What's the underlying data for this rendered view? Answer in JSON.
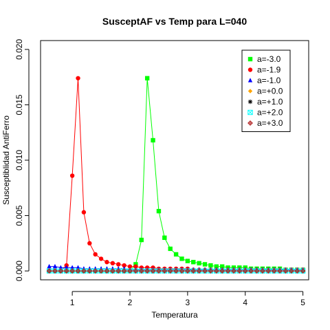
{
  "chart_data": {
    "type": "line",
    "title": "SusceptAF vs Temp para L=040",
    "xlabel": "Temperatura",
    "ylabel": "Susceptiblidad AntiFerro",
    "xlim": [
      0.45,
      5.1
    ],
    "ylim": [
      -0.0008,
      0.0208
    ],
    "x_ticks": [
      1,
      2,
      3,
      4,
      5
    ],
    "x_tick_labels": [
      "1",
      "2",
      "3",
      "4",
      "5"
    ],
    "y_ticks": [
      0.0,
      0.005,
      0.01,
      0.015,
      0.02
    ],
    "y_tick_labels": [
      "0.000",
      "0.005",
      "0.010",
      "0.015",
      "0.020"
    ],
    "grid": false,
    "legend_position": "top-right",
    "x": [
      0.6,
      0.7,
      0.8,
      0.9,
      1.0,
      1.1,
      1.2,
      1.3,
      1.4,
      1.5,
      1.6,
      1.7,
      1.8,
      1.9,
      2.0,
      2.1,
      2.2,
      2.3,
      2.4,
      2.5,
      2.6,
      2.7,
      2.8,
      2.9,
      3.0,
      3.1,
      3.2,
      3.3,
      3.4,
      3.5,
      3.6,
      3.7,
      3.8,
      3.9,
      4.0,
      4.1,
      4.2,
      4.3,
      4.4,
      4.5,
      4.6,
      4.7,
      4.8,
      4.9,
      5.0
    ],
    "series": [
      {
        "name": "a=-3.0",
        "color": "#00ff00",
        "marker": "square",
        "values": [
          0,
          0,
          0,
          0,
          0,
          0,
          0,
          0,
          0,
          0,
          0,
          0,
          0,
          0,
          0,
          0.0006,
          0.0028,
          0.0174,
          0.0118,
          0.0054,
          0.003,
          0.002,
          0.0015,
          0.0011,
          0.0009,
          0.0008,
          0.0007,
          0.0006,
          0.0005,
          0.0004,
          0.0004,
          0.0003,
          0.0003,
          0.0003,
          0.0003,
          0.0002,
          0.0002,
          0.0002,
          0.0002,
          0.0002,
          0.0002,
          0.0001,
          0.0001,
          0.0001,
          0.0001
        ]
      },
      {
        "name": "a=-1.9",
        "color": "#ff0000",
        "marker": "circle",
        "values": [
          0,
          0,
          0,
          0.0005,
          0.0086,
          0.0174,
          0.0053,
          0.0025,
          0.0015,
          0.0011,
          0.0008,
          0.0007,
          0.0006,
          0.0005,
          0.0004,
          0.0004,
          0.0003,
          0.0003,
          0.0003,
          0.0002,
          0.0002,
          0.0002,
          0.0002,
          0.0002,
          0.0002,
          0.0001,
          0.0001,
          0.0001,
          0.0001,
          0.0001,
          0.0001,
          0.0001,
          0.0001,
          0.0001,
          0.0001,
          0.0001,
          0.0001,
          0.0001,
          0.0001,
          0.0001,
          0.0001,
          0.0001,
          0.0001,
          0.0001,
          0.0001
        ]
      },
      {
        "name": "a=-1.0",
        "color": "#0000ff",
        "marker": "triangle",
        "values": [
          0.0004,
          0.0004,
          0.0003,
          0.0003,
          0.0003,
          0.0003,
          0.0002,
          0.0002,
          0.0002,
          0.0002,
          0.0002,
          0.0002,
          0.0002,
          0.0002,
          0.0001,
          0.0001,
          0.0001,
          0.0001,
          0.0001,
          0.0001,
          0.0001,
          0.0001,
          0.0001,
          0.0001,
          0.0001,
          0.0001,
          0.0001,
          0.0001,
          0.0001,
          0.0001,
          0.0001,
          0.0001,
          0.0001,
          0.0001,
          0.0001,
          0.0001,
          0.0001,
          0.0001,
          0.0001,
          0.0001,
          0.0001,
          0.0001,
          0.0001,
          0.0001,
          0.0001
        ]
      },
      {
        "name": "a=+0.0",
        "color": "#ffa500",
        "marker": "diamond",
        "values": [
          0,
          0,
          0,
          0,
          0,
          0,
          0,
          0,
          0,
          0,
          0,
          0,
          0,
          0,
          0,
          0,
          0,
          0,
          0,
          0,
          0,
          0,
          0,
          0,
          0,
          0,
          0,
          0,
          0,
          0,
          0,
          0,
          0,
          0,
          0,
          0,
          0,
          0,
          0,
          0,
          0,
          0,
          0,
          0,
          0
        ]
      },
      {
        "name": "a=+1.0",
        "color": "#000000",
        "marker": "asterisk",
        "values": [
          0,
          0,
          0,
          0,
          0,
          0,
          0,
          0,
          0,
          0,
          0,
          0,
          0,
          0,
          0,
          0,
          0,
          0,
          0,
          0,
          0,
          0,
          0,
          0,
          0,
          0,
          0,
          0,
          0,
          0,
          0,
          0,
          0,
          0,
          0,
          0,
          0,
          0,
          0,
          0,
          0,
          0,
          0,
          0,
          0
        ]
      },
      {
        "name": "a=+2.0",
        "color": "#00ffff",
        "marker": "square-open",
        "values": [
          0,
          0,
          0,
          0,
          0,
          0,
          0,
          0,
          0,
          0,
          0,
          0,
          0,
          0,
          0,
          0,
          0,
          0,
          0,
          0,
          0,
          0,
          0,
          0,
          0,
          0,
          0,
          0,
          0,
          0,
          0,
          0,
          0,
          0,
          0,
          0,
          0,
          0,
          0,
          0,
          0,
          0,
          0,
          0,
          0
        ]
      },
      {
        "name": "a=+3.0",
        "color": "#b22222",
        "marker": "circle-cross",
        "values": [
          0,
          0,
          0,
          0,
          0,
          0,
          0,
          0,
          0,
          0,
          0,
          0,
          0,
          0,
          0,
          0,
          0,
          0,
          0,
          0,
          0,
          0,
          0,
          0,
          0,
          0,
          0,
          0,
          0,
          0,
          0,
          0,
          0,
          0,
          0,
          0,
          0,
          0,
          0,
          0,
          0,
          0,
          0,
          0,
          0
        ]
      }
    ]
  }
}
